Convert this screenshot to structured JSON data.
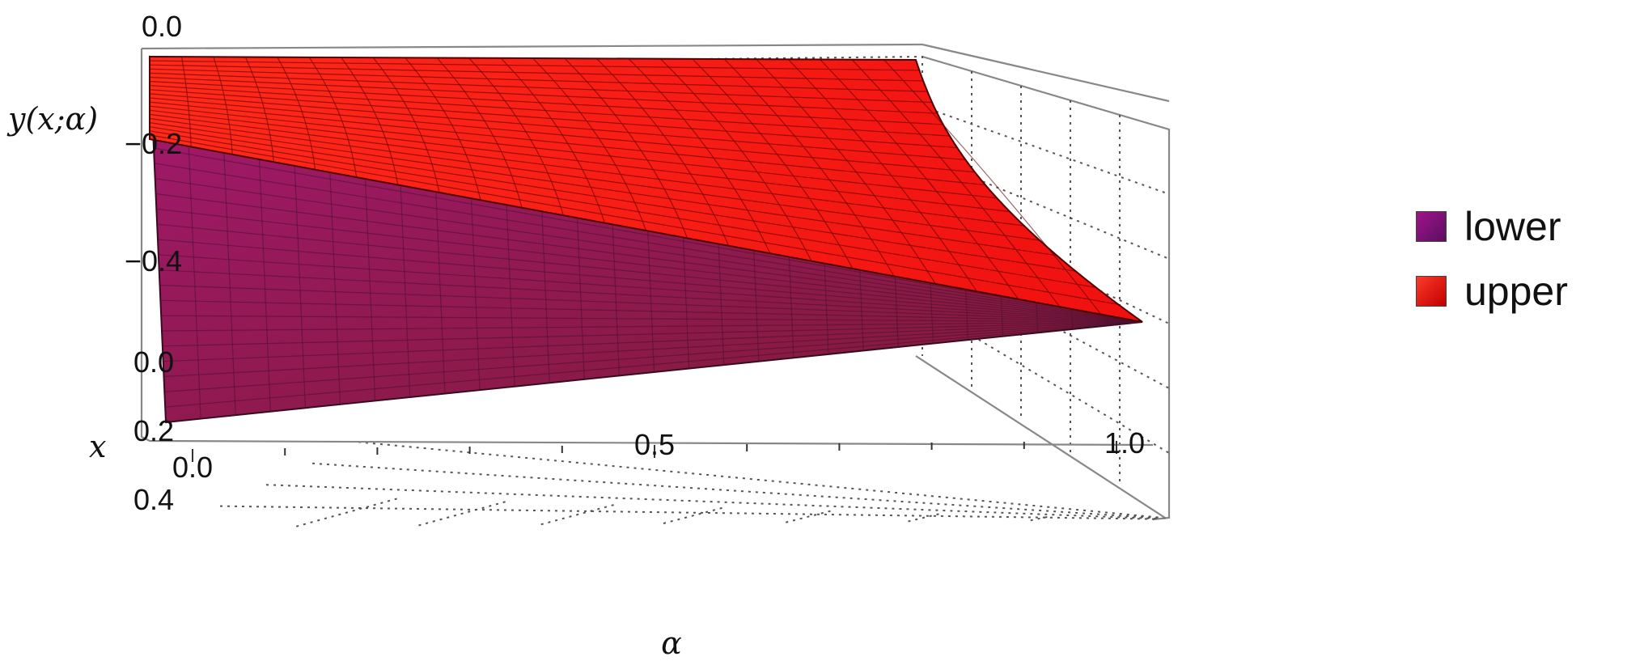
{
  "chart_data": {
    "type": "surface3d",
    "title": "",
    "zlabel": "y(x;α)",
    "xlabel": "x",
    "alabel": "α",
    "alpha_ticks": [
      "0.0",
      "0.5",
      "1.0"
    ],
    "alpha_tick_values": [
      0.0,
      0.5,
      1.0
    ],
    "x_ticks": [
      "0.0",
      "0.2",
      "0.4"
    ],
    "x_tick_values": [
      0.0,
      0.2,
      0.4
    ],
    "y_ticks": [
      "0.0",
      "-0.2",
      "-0.4"
    ],
    "y_tick_values": [
      0.0,
      -0.2,
      -0.4
    ],
    "alpha_range": [
      0,
      1
    ],
    "x_range": [
      0,
      0.5
    ],
    "y_range": [
      -0.6,
      0.0
    ],
    "grid": true,
    "legend_position": "right",
    "series": [
      {
        "name": "lower",
        "color": "#8b1a6b",
        "description_points": [
          {
            "alpha": 0.0,
            "x": 0.0,
            "y": -0.2
          },
          {
            "alpha": 0.0,
            "x": 0.5,
            "y": -0.9
          },
          {
            "alpha": 1.0,
            "x": 0.0,
            "y": -0.5
          },
          {
            "alpha": 1.0,
            "x": 0.5,
            "y": -0.5
          }
        ]
      },
      {
        "name": "upper",
        "color": "#ff1a1a",
        "description_points": [
          {
            "alpha": 0.0,
            "x": 0.0,
            "y": -0.2
          },
          {
            "alpha": 0.0,
            "x": 0.5,
            "y": 0.0
          },
          {
            "alpha": 1.0,
            "x": 0.0,
            "y": -0.5
          },
          {
            "alpha": 1.0,
            "x": 0.5,
            "y": -0.5
          }
        ]
      }
    ]
  },
  "legend": {
    "items": [
      {
        "label": "lower",
        "color": "#8b1a6b"
      },
      {
        "label": "upper",
        "color": "#ff1a1a"
      }
    ]
  }
}
